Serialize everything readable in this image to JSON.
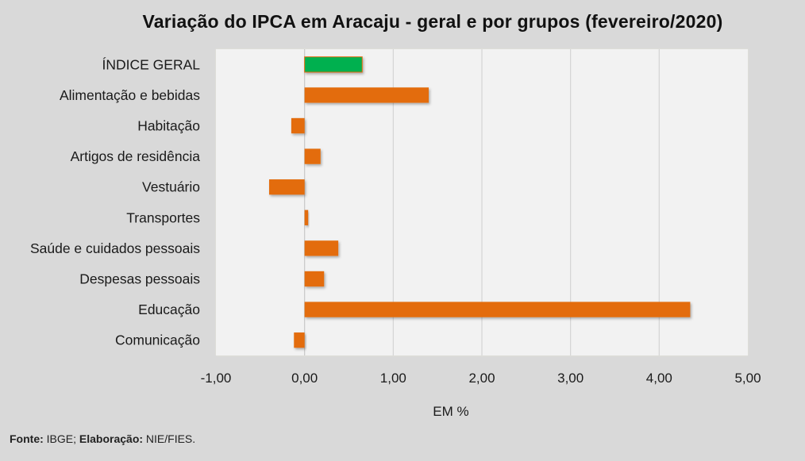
{
  "chart_data": {
    "type": "bar",
    "orientation": "horizontal",
    "title": "Variação do IPCA em Aracaju - geral e por grupos (fevereiro/2020)",
    "xlabel": "EM %",
    "ylabel": "",
    "xlim": [
      -1,
      5
    ],
    "xticks": [
      -1,
      0,
      1,
      2,
      3,
      4,
      5
    ],
    "xtick_labels": [
      "-1,00",
      "0,00",
      "1,00",
      "2,00",
      "3,00",
      "4,00",
      "5,00"
    ],
    "grid": "vertical",
    "legend": "none",
    "categories": [
      "ÍNDICE GERAL",
      "Alimentação e bebidas",
      "Habitação",
      "Artigos de residência",
      "Vestuário",
      "Transportes",
      "Saúde e cuidados pessoais",
      "Despesas pessoais",
      "Educação",
      "Comunicação"
    ],
    "values": [
      0.65,
      1.4,
      -0.15,
      0.18,
      -0.4,
      0.04,
      0.38,
      0.22,
      4.35,
      -0.12
    ],
    "colors": [
      "#00b050",
      "#e36c0a",
      "#e36c0a",
      "#e36c0a",
      "#e36c0a",
      "#e36c0a",
      "#e36c0a",
      "#e36c0a",
      "#e36c0a",
      "#e36c0a"
    ]
  },
  "footer": {
    "source_label": "Fonte:",
    "source_value": " IBGE; ",
    "elaboration_label": "Elaboração:",
    "elaboration_value": " NIE/FIES."
  }
}
